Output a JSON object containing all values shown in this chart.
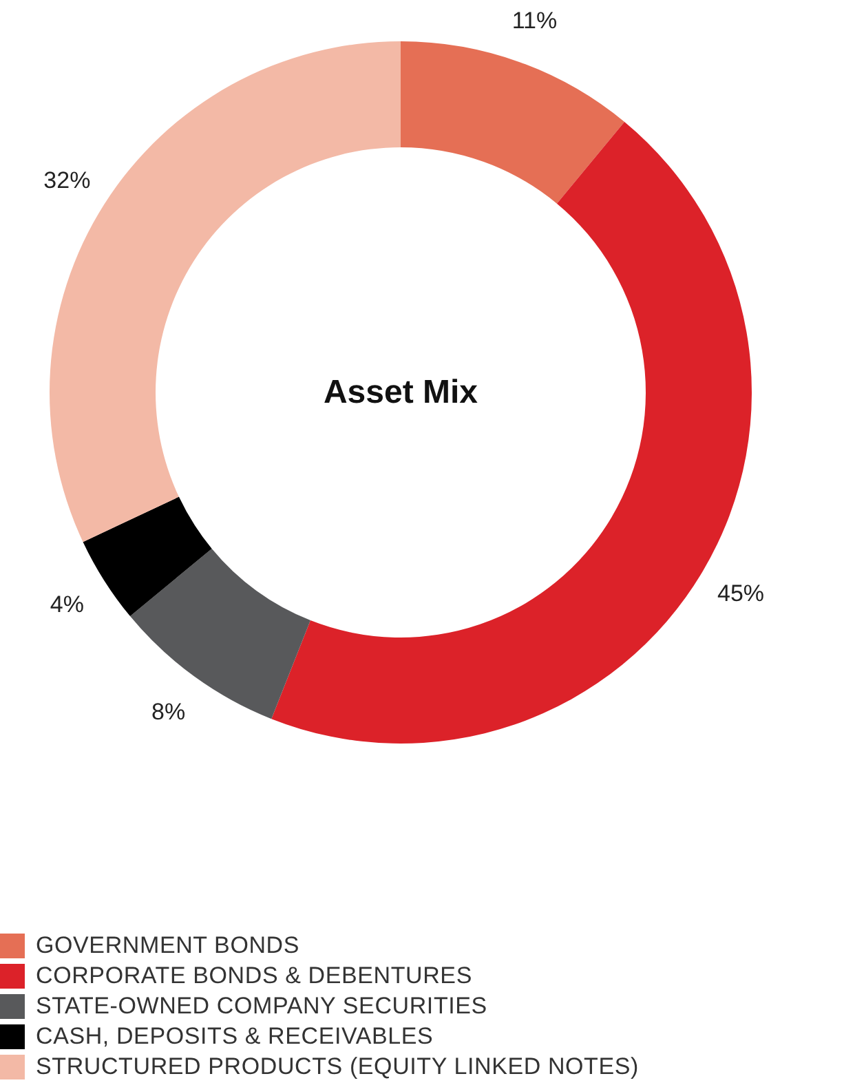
{
  "chart_data": {
    "type": "donut",
    "title": "Asset Mix",
    "categories": [
      "GOVERNMENT BONDS",
      "CORPORATE BONDS & DEBENTURES",
      "STATE-OWNED COMPANY SECURITIES",
      "CASH, DEPOSITS & RECEIVABLES",
      "STRUCTURED PRODUCTS (EQUITY LINKED NOTES)"
    ],
    "values": [
      11,
      45,
      8,
      4,
      32
    ],
    "value_labels": [
      "11%",
      "45%",
      "8%",
      "4%",
      "32%"
    ],
    "colors": [
      "#e56f55",
      "#dc2229",
      "#58595b",
      "#000000",
      "#f3b9a6"
    ],
    "legend": "bottom left"
  }
}
